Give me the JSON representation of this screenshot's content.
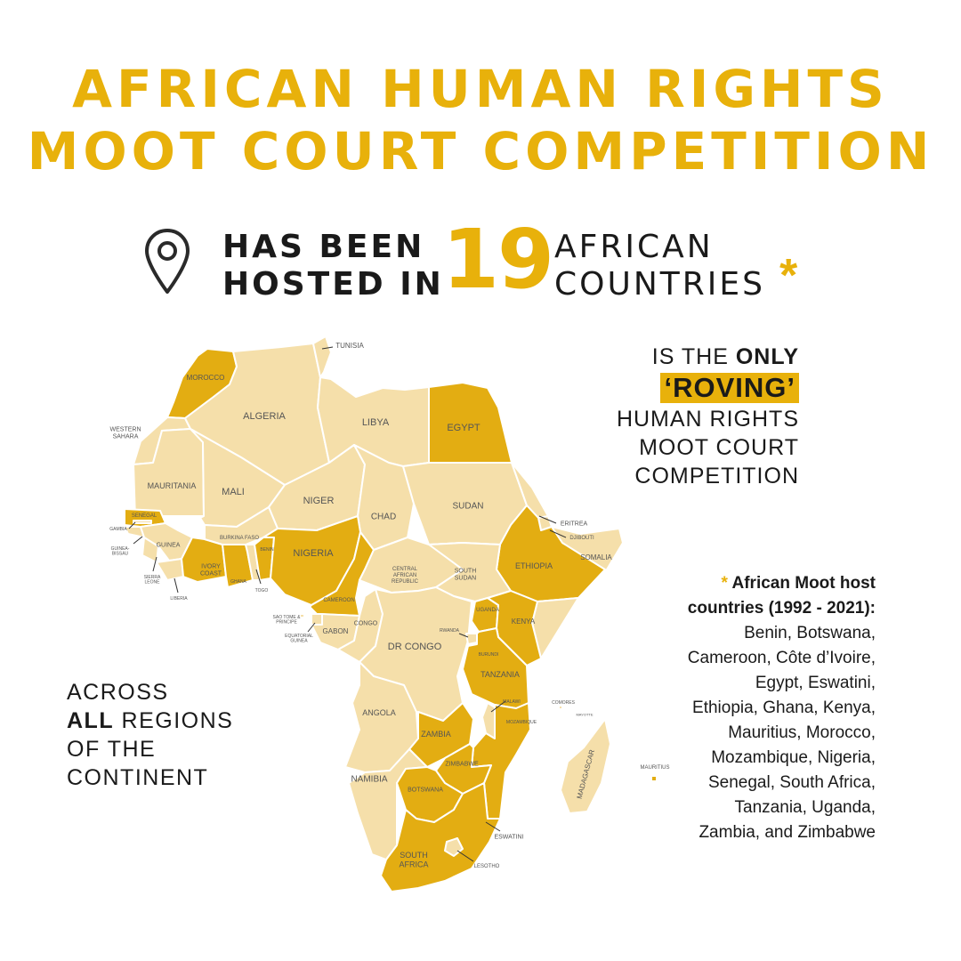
{
  "title": {
    "line1": "AFRICAN HUMAN RIGHTS",
    "line2": "MOOT COURT COMPETITION"
  },
  "headline": {
    "left_line1": "HAS BEEN",
    "left_line2": "HOSTED IN",
    "number": "19",
    "right_line1": "AFRICAN",
    "right_line2": "COUNTRIES",
    "asterisk": "*"
  },
  "roving": {
    "line1_pre": "IS THE ",
    "line1_bold": "ONLY",
    "highlight": "‘ROVING’",
    "line3": "HUMAN RIGHTS",
    "line4": "MOOT COURT",
    "line5": "COMPETITION"
  },
  "across": {
    "line1": "ACROSS",
    "line2_bold": "ALL",
    "line2_rest": " REGIONS",
    "line3": "OF THE",
    "line4": "CONTINENT"
  },
  "hosts": {
    "asterisk": "* ",
    "heading_1": "African Moot host",
    "heading_2": "countries (1992 - 2021):",
    "lines": [
      "Benin, Botswana,",
      "Cameroon, Côte d’Ivoire,",
      "Egypt, Eswatini,",
      "Ethiopia, Ghana, Kenya,",
      "Mauritius, Morocco,",
      "Mozambique, Nigeria,",
      "Senegal, South Africa,",
      "Tanzania, Uganda,",
      "Zambia, and Zimbabwe"
    ]
  },
  "colors": {
    "accent": "#e8b10b",
    "host_fill": "#e3ad12",
    "other_fill": "#f5dfaa",
    "border": "#ffffff"
  },
  "map": {
    "countries": [
      {
        "name": "MOROCCO",
        "host": true
      },
      {
        "name": "WESTERN SAHARA",
        "host": false
      },
      {
        "name": "ALGERIA",
        "host": false
      },
      {
        "name": "TUNISIA",
        "host": false
      },
      {
        "name": "LIBYA",
        "host": false
      },
      {
        "name": "EGYPT",
        "host": true
      },
      {
        "name": "MAURITANIA",
        "host": false
      },
      {
        "name": "MALI",
        "host": false
      },
      {
        "name": "NIGER",
        "host": false
      },
      {
        "name": "CHAD",
        "host": false
      },
      {
        "name": "SUDAN",
        "host": false
      },
      {
        "name": "ERITREA",
        "host": false
      },
      {
        "name": "DJIBOUTI",
        "host": false
      },
      {
        "name": "ETHIOPIA",
        "host": true
      },
      {
        "name": "SOMALIA",
        "host": false
      },
      {
        "name": "SENEGAL",
        "host": true
      },
      {
        "name": "GAMBIA",
        "host": false
      },
      {
        "name": "GUINEA-BISSAU",
        "host": false
      },
      {
        "name": "GUINEA",
        "host": false
      },
      {
        "name": "SIERRA LEONE",
        "host": false
      },
      {
        "name": "LIBERIA",
        "host": false
      },
      {
        "name": "IVORY COAST",
        "host": true
      },
      {
        "name": "BURKINA FASO",
        "host": false
      },
      {
        "name": "GHANA",
        "host": true
      },
      {
        "name": "TOGO",
        "host": false
      },
      {
        "name": "BENIN",
        "host": true
      },
      {
        "name": "NIGERIA",
        "host": true
      },
      {
        "name": "CAMEROON",
        "host": true
      },
      {
        "name": "CENTRAL AFRICAN REPUBLIC",
        "host": false
      },
      {
        "name": "SOUTH SUDAN",
        "host": false
      },
      {
        "name": "SAO TOME & PRINCIPE",
        "host": false
      },
      {
        "name": "EQUATORIAL GUINEA",
        "host": false
      },
      {
        "name": "GABON",
        "host": false
      },
      {
        "name": "CONGO",
        "host": false
      },
      {
        "name": "DR CONGO",
        "host": false
      },
      {
        "name": "UGANDA",
        "host": true
      },
      {
        "name": "KENYA",
        "host": true
      },
      {
        "name": "RWANDA",
        "host": false
      },
      {
        "name": "BURUNDI",
        "host": false
      },
      {
        "name": "TANZANIA",
        "host": true
      },
      {
        "name": "ANGOLA",
        "host": false
      },
      {
        "name": "ZAMBIA",
        "host": true
      },
      {
        "name": "MALAWI",
        "host": false
      },
      {
        "name": "MOZAMBIQUE",
        "host": true
      },
      {
        "name": "COMORES",
        "host": false
      },
      {
        "name": "MAYOTTE",
        "host": false
      },
      {
        "name": "MADAGASCAR",
        "host": false
      },
      {
        "name": "MAURITIUS",
        "host": true
      },
      {
        "name": "NAMIBIA",
        "host": false
      },
      {
        "name": "ZIMBABWE",
        "host": true
      },
      {
        "name": "BOTSWANA",
        "host": true
      },
      {
        "name": "ESWATINI",
        "host": true
      },
      {
        "name": "SOUTH AFRICA",
        "host": true
      },
      {
        "name": "LESOTHO",
        "host": false
      }
    ]
  }
}
